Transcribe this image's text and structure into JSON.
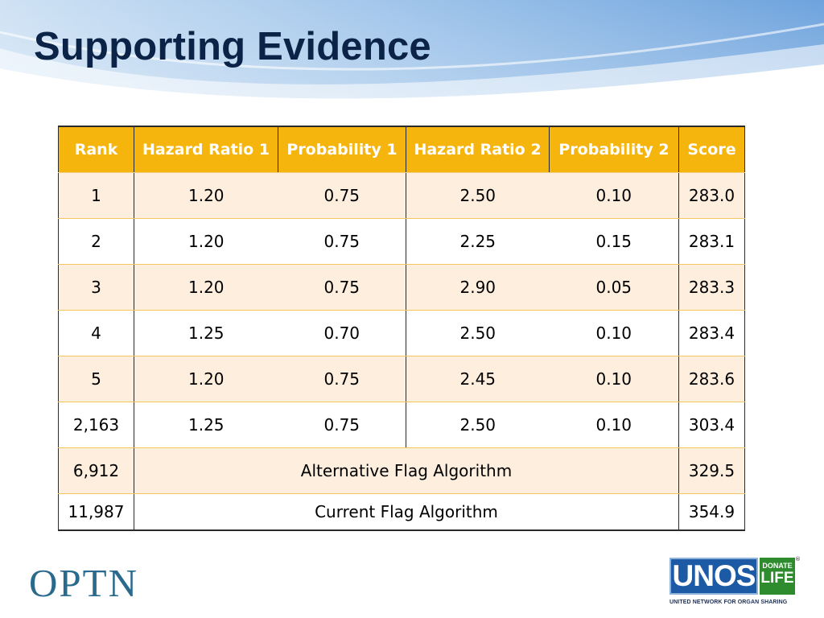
{
  "slide": {
    "title": "Supporting Evidence"
  },
  "table": {
    "headers": [
      "Rank",
      "Hazard Ratio 1",
      "Probability 1",
      "Hazard Ratio 2",
      "Probability 2",
      "Score"
    ],
    "rows": [
      [
        "1",
        "1.20",
        "0.75",
        "2.50",
        "0.10",
        "283.0"
      ],
      [
        "2",
        "1.20",
        "0.75",
        "2.25",
        "0.15",
        "283.1"
      ],
      [
        "3",
        "1.20",
        "0.75",
        "2.90",
        "0.05",
        "283.3"
      ],
      [
        "4",
        "1.25",
        "0.70",
        "2.50",
        "0.10",
        "283.4"
      ],
      [
        "5",
        "1.20",
        "0.75",
        "2.45",
        "0.10",
        "283.6"
      ],
      [
        "2,163",
        "1.25",
        "0.75",
        "2.50",
        "0.10",
        "303.4"
      ]
    ],
    "alternative": {
      "rank": "6,912",
      "label": "Alternative Flag Algorithm",
      "score": "329.5"
    },
    "current": {
      "rank": "11,987",
      "label": "Current Flag Algorithm",
      "score": "354.9"
    }
  },
  "footer": {
    "left_logo": "OPTN",
    "unos_logo": "UNOS",
    "donate_top": "DONATE",
    "donate_bottom": "LIFE",
    "registered": "®",
    "unos_tagline": "UNITED NETWORK FOR ORGAN SHARING"
  },
  "colors": {
    "header_fill": "#f6b50d",
    "alt_row_fill": "#fdeede",
    "title_color": "#0b2347",
    "optn_color": "#2a6a8c",
    "unos_blue": "#1c5aa6",
    "donate_green": "#2e8b2e"
  }
}
